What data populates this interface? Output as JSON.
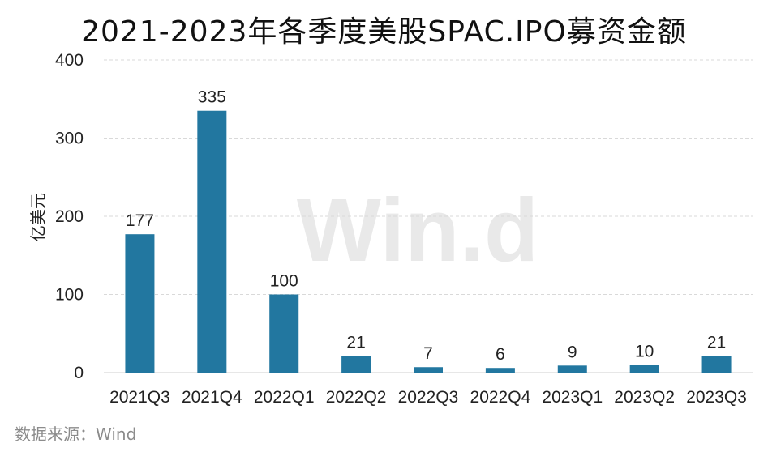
{
  "chart_data": {
    "type": "bar",
    "title": "2021-2023年各季度美股SPAC.IPO募资金额",
    "ylabel": "亿美元",
    "categories": [
      "2021Q3",
      "2021Q4",
      "2022Q1",
      "2022Q2",
      "2022Q3",
      "2022Q4",
      "2023Q1",
      "2023Q2",
      "2023Q3"
    ],
    "values": [
      177,
      335,
      100,
      21,
      7,
      6,
      9,
      10,
      21
    ],
    "ylim": [
      0,
      400
    ],
    "yticks": [
      0,
      100,
      200,
      300,
      400
    ],
    "grid": true,
    "bar_color": "#2277a0",
    "legend": "none"
  },
  "watermark": "Win.d",
  "source": "数据来源：Wind"
}
